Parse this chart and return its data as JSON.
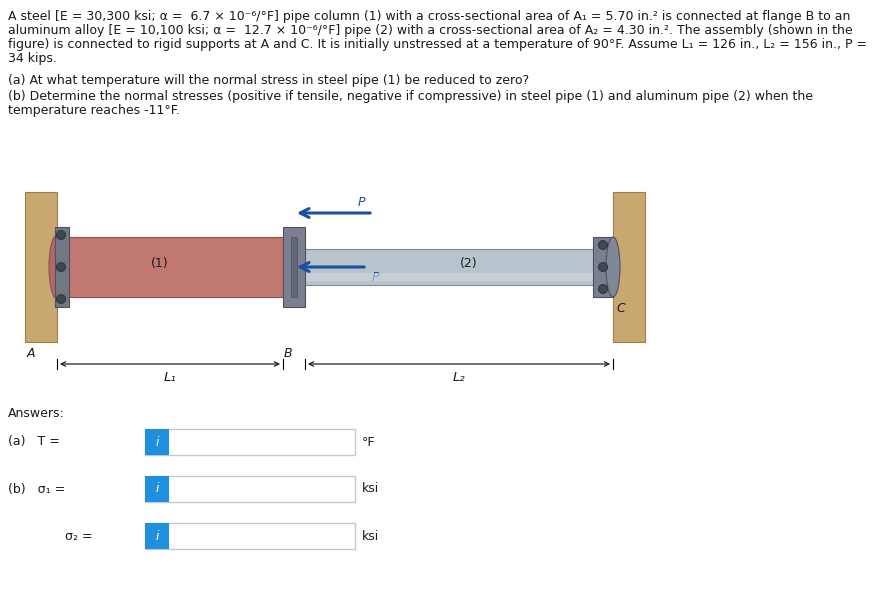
{
  "title_line1": "A steel [E = 30,300 ksi; α =  6.7 × 10⁻⁶/°F] pipe column (1) with a cross-sectional area of A₁ = 5.70 in.² is connected at flange B to an",
  "title_line2": "aluminum alloy [E = 10,100 ksi; α =  12.7 × 10⁻⁶/°F] pipe (2) with a cross-sectional area of A₂ = 4.30 in.². The assembly (shown in the",
  "title_line3": "figure) is connected to rigid supports at A and C. It is initially unstressed at a temperature of 90°F. Assume L₁ = 126 in., L₂ = 156 in., P =",
  "title_line4": "34 kips.",
  "question_a": "(a) At what temperature will the normal stress in steel pipe (1) be reduced to zero?",
  "question_b1": "(b) Determine the normal stresses (positive if tensile, negative if compressive) in steel pipe (1) and aluminum pipe (2) when the",
  "question_b2": "temperature reaches -11°F.",
  "answers_label": "Answers:",
  "answer_a_label": "(a)   T =",
  "answer_a_unit": "°F",
  "answer_b1_label": "(b)   σ₁ =",
  "answer_b1_unit": "ksi",
  "answer_b2_label": "σ₂ =",
  "answer_b2_unit": "ksi",
  "bg_color": "#ffffff",
  "input_box_color": "#ffffff",
  "input_box_border": "#c0c8d0",
  "input_icon_color": "#1e90dd",
  "text_color": "#1a1a1a",
  "wall_color": "#c8a870",
  "wall_edge_color": "#a08040",
  "pipe1_color": "#c07870",
  "pipe1_edge_color": "#905050",
  "pipe2_color": "#b8c4cc",
  "pipe2_edge_color": "#808898",
  "flange_color": "#7a8090",
  "flange_edge_color": "#505060",
  "bolt_color": "#606878",
  "arrow_color": "#1a4fa0",
  "figure_label_A": "A",
  "figure_label_B": "B",
  "figure_label_C": "C",
  "figure_label_1": "(1)",
  "figure_label_2": "(2)",
  "figure_label_L1": "L₁",
  "figure_label_L2": "L₂",
  "figure_label_P": "P"
}
